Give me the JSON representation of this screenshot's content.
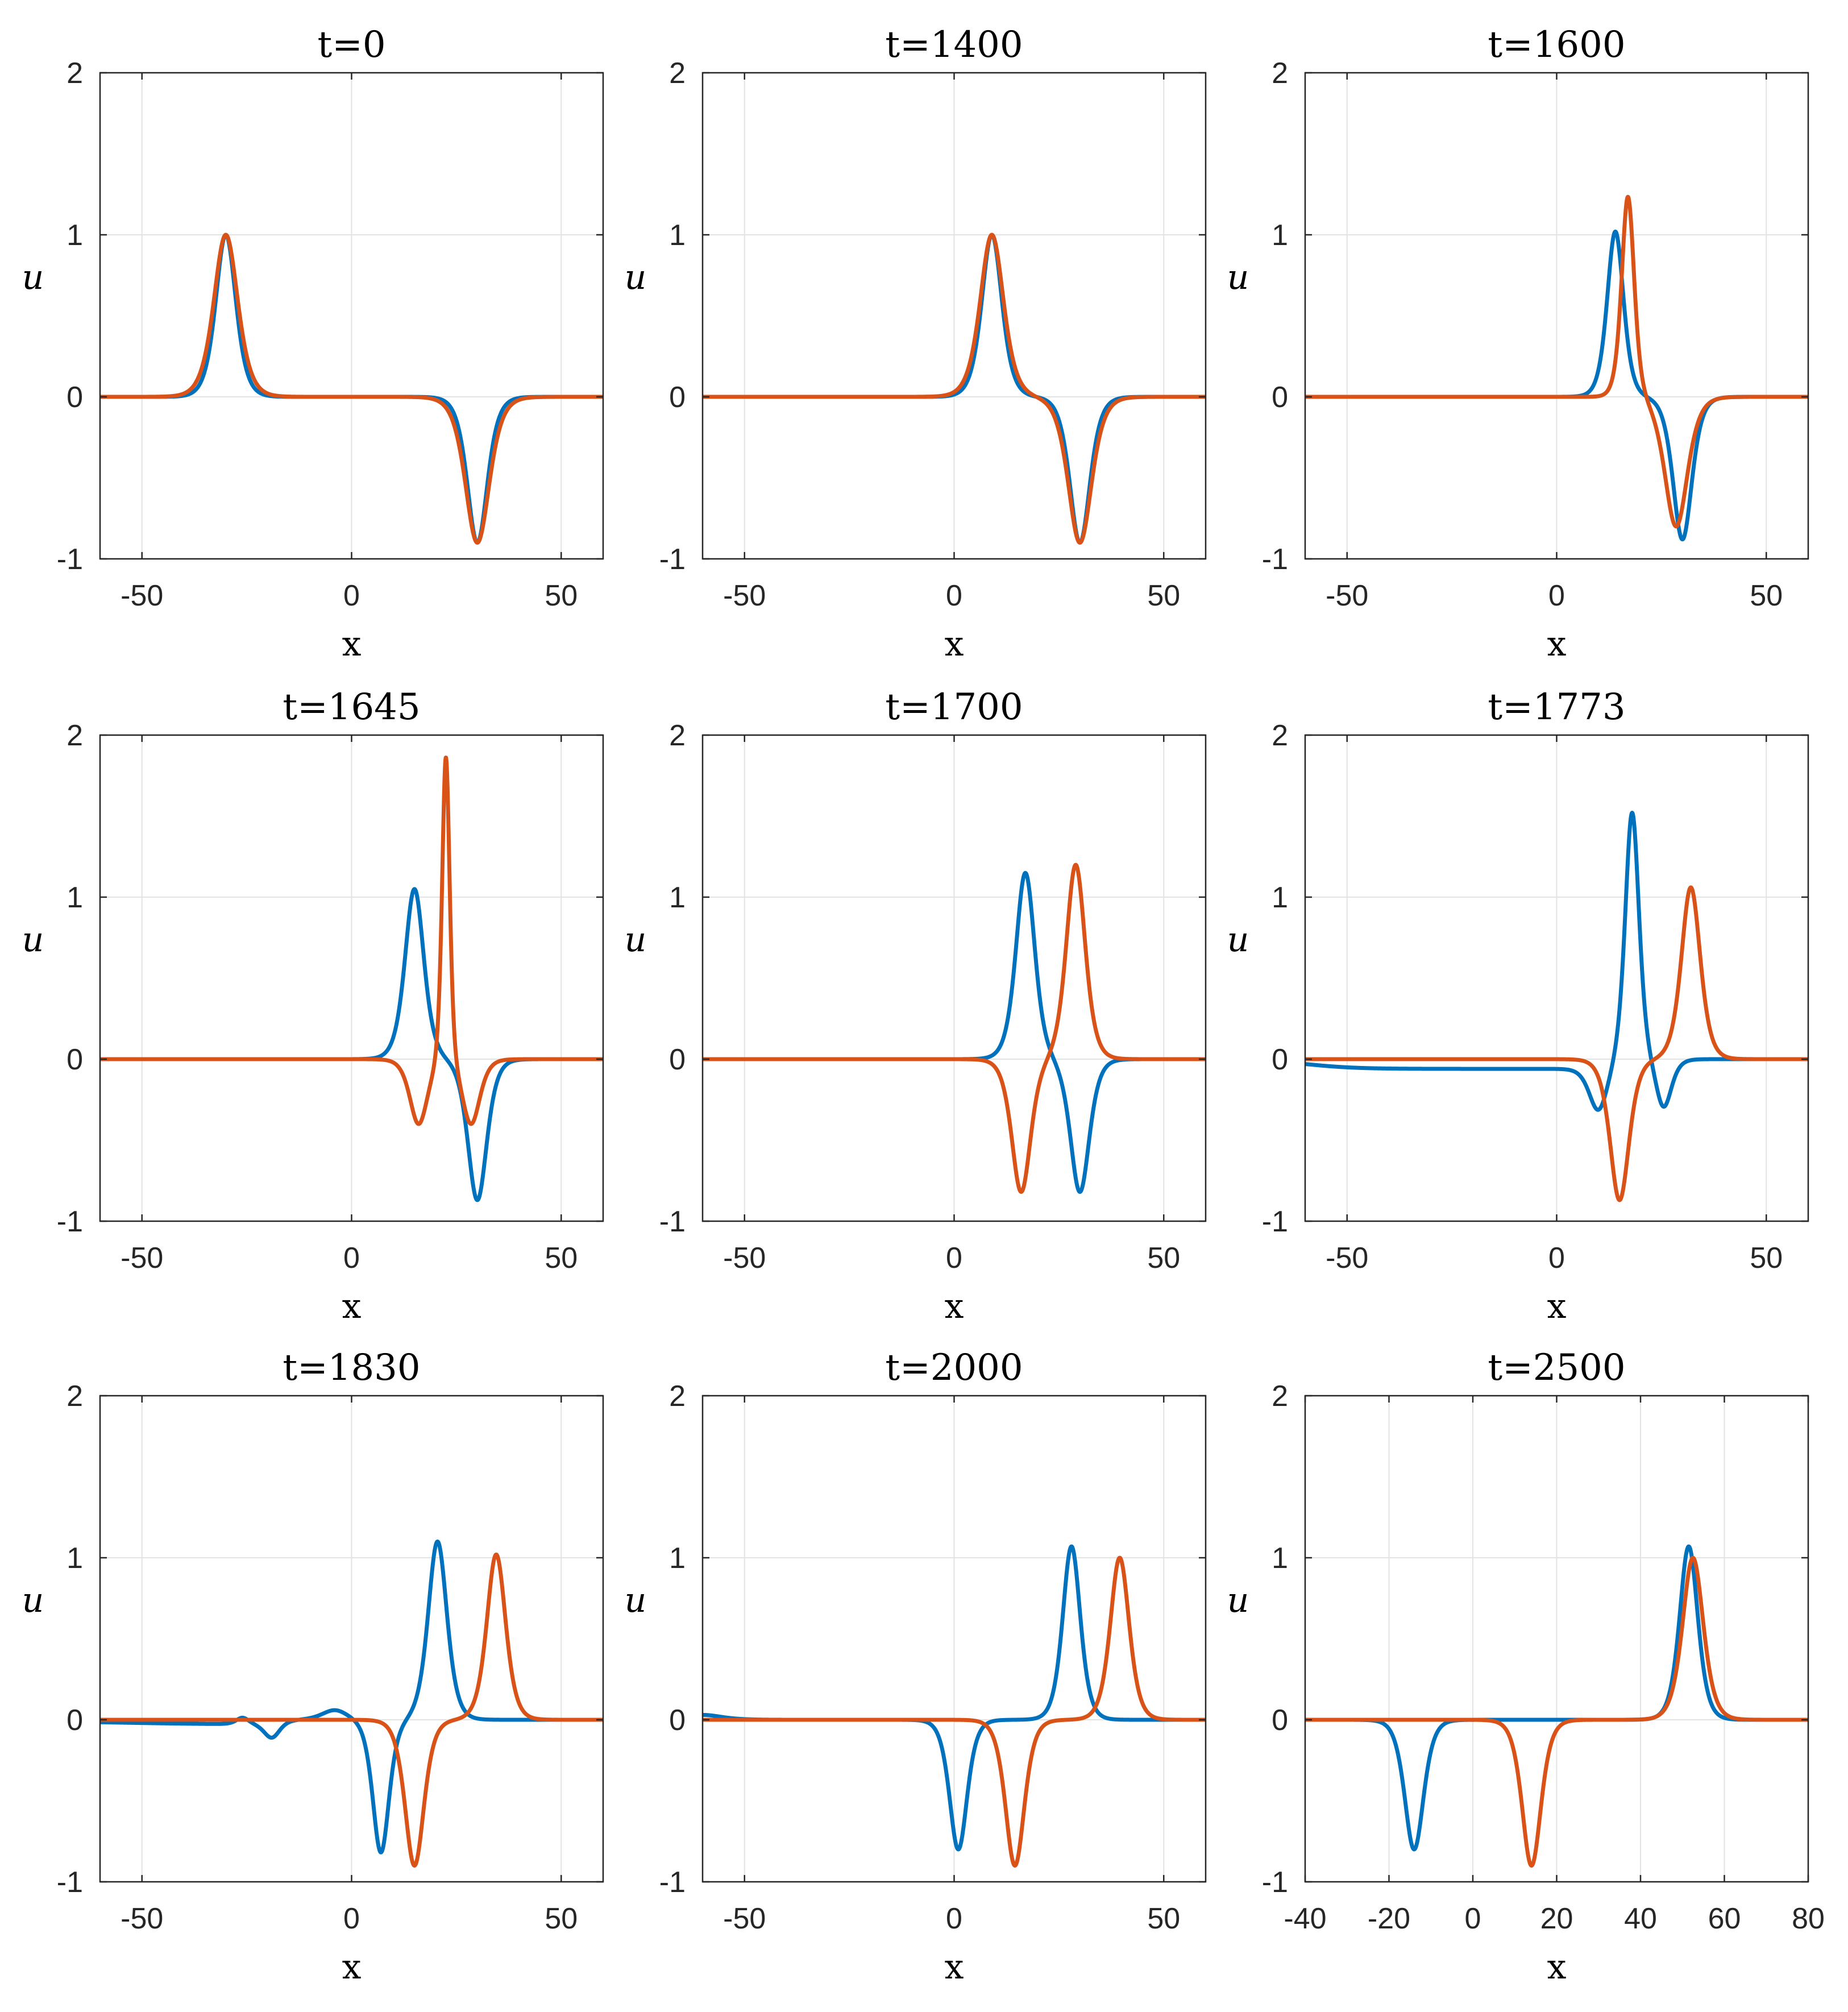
{
  "colors": {
    "series1": "#0072BD",
    "series2": "#D95319",
    "grid": "#e3e3e3",
    "axis": "#262626"
  },
  "chart_data": [
    {
      "type": "line",
      "title": "t=0",
      "xlabel": "x",
      "ylabel": "u",
      "xlim": [
        -60,
        60
      ],
      "ylim": [
        -1,
        2
      ],
      "xticks": [
        -50,
        0,
        50
      ],
      "xtick_labels": [
        "-50",
        "0",
        "50"
      ],
      "yticks": [
        -1,
        0,
        1,
        2
      ],
      "ytick_labels": [
        "-1",
        "0",
        "1",
        "2"
      ],
      "grid": true,
      "series": [
        {
          "name": "blue",
          "color": "#0072BD",
          "components": [
            {
              "type": "sech2",
              "center": -30,
              "amp": 1.0,
              "width": 3.2
            },
            {
              "type": "sech2",
              "center": 30,
              "amp": -0.9,
              "width": 3.2
            }
          ]
        },
        {
          "name": "orange",
          "color": "#D95319",
          "components": [
            {
              "type": "sech2",
              "center": -30,
              "amp": 1.0,
              "width": 3.8
            },
            {
              "type": "sech2",
              "center": 30,
              "amp": -0.9,
              "width": 3.8
            }
          ]
        }
      ]
    },
    {
      "type": "line",
      "title": "t=1400",
      "xlabel": "x",
      "ylabel": "u",
      "xlim": [
        -60,
        60
      ],
      "ylim": [
        -1,
        2
      ],
      "xticks": [
        -50,
        0,
        50
      ],
      "xtick_labels": [
        "-50",
        "0",
        "50"
      ],
      "yticks": [
        -1,
        0,
        1,
        2
      ],
      "ytick_labels": [
        "-1",
        "0",
        "1",
        "2"
      ],
      "grid": true,
      "series": [
        {
          "name": "blue",
          "color": "#0072BD",
          "components": [
            {
              "type": "sech2",
              "center": 9,
              "amp": 1.0,
              "width": 3.2
            },
            {
              "type": "sech2",
              "center": 30,
              "amp": -0.9,
              "width": 3.2
            }
          ]
        },
        {
          "name": "orange",
          "color": "#D95319",
          "components": [
            {
              "type": "sech2",
              "center": 9,
              "amp": 1.0,
              "width": 3.7
            },
            {
              "type": "sech2",
              "center": 30,
              "amp": -0.9,
              "width": 3.7
            }
          ]
        }
      ]
    },
    {
      "type": "line",
      "title": "t=1600",
      "xlabel": "x",
      "ylabel": "u",
      "xlim": [
        -60,
        60
      ],
      "ylim": [
        -1,
        2
      ],
      "xticks": [
        -50,
        0,
        50
      ],
      "xtick_labels": [
        "-50",
        "0",
        "50"
      ],
      "yticks": [
        -1,
        0,
        1,
        2
      ],
      "ytick_labels": [
        "-1",
        "0",
        "1",
        "2"
      ],
      "grid": true,
      "series": [
        {
          "name": "blue",
          "color": "#0072BD",
          "components": [
            {
              "type": "sech2",
              "center": 14,
              "amp": 1.02,
              "width": 2.6
            },
            {
              "type": "sech2",
              "center": 30,
              "amp": -0.88,
              "width": 3.0
            }
          ]
        },
        {
          "name": "orange",
          "color": "#D95319",
          "components": [
            {
              "type": "sech2",
              "center": 17,
              "amp": 1.24,
              "width": 2.0
            },
            {
              "type": "sech2",
              "center": 28.5,
              "amp": -0.8,
              "width": 3.6
            }
          ]
        }
      ]
    },
    {
      "type": "line",
      "title": "t=1645",
      "xlabel": "x",
      "ylabel": "u",
      "xlim": [
        -60,
        60
      ],
      "ylim": [
        -1,
        2
      ],
      "xticks": [
        -50,
        0,
        50
      ],
      "xtick_labels": [
        "-50",
        "0",
        "50"
      ],
      "yticks": [
        -1,
        0,
        1,
        2
      ],
      "ytick_labels": [
        "-1",
        "0",
        "1",
        "2"
      ],
      "grid": true,
      "series": [
        {
          "name": "blue",
          "color": "#0072BD",
          "components": [
            {
              "type": "sech2",
              "center": 15,
              "amp": 1.05,
              "width": 3.0
            },
            {
              "type": "sech2",
              "center": 30,
              "amp": -0.87,
              "width": 3.0
            }
          ]
        },
        {
          "name": "orange",
          "color": "#D95319",
          "components": [
            {
              "type": "sech2",
              "center": 22.5,
              "amp": 1.9,
              "width": 1.2
            },
            {
              "type": "sech2",
              "center": 16,
              "amp": -0.4,
              "width": 2.8
            },
            {
              "type": "sech2",
              "center": 28.5,
              "amp": -0.4,
              "width": 2.8
            }
          ]
        }
      ]
    },
    {
      "type": "line",
      "title": "t=1700",
      "xlabel": "x",
      "ylabel": "u",
      "xlim": [
        -60,
        60
      ],
      "ylim": [
        -1,
        2
      ],
      "xticks": [
        -50,
        0,
        50
      ],
      "xtick_labels": [
        "-50",
        "0",
        "50"
      ],
      "yticks": [
        -1,
        0,
        1,
        2
      ],
      "ytick_labels": [
        "-1",
        "0",
        "1",
        "2"
      ],
      "grid": true,
      "series": [
        {
          "name": "blue",
          "color": "#0072BD",
          "components": [
            {
              "type": "sech2",
              "center": 17,
              "amp": 1.15,
              "width": 3.0
            },
            {
              "type": "sech2",
              "center": 30,
              "amp": -0.82,
              "width": 3.0
            }
          ]
        },
        {
          "name": "orange",
          "color": "#D95319",
          "components": [
            {
              "type": "sech2",
              "center": 29,
              "amp": 1.2,
              "width": 3.0
            },
            {
              "type": "sech2",
              "center": 16,
              "amp": -0.82,
              "width": 3.0
            }
          ]
        }
      ]
    },
    {
      "type": "line",
      "title": "t=1773",
      "xlabel": "x",
      "ylabel": "u",
      "xlim": [
        -60,
        60
      ],
      "ylim": [
        -1,
        2
      ],
      "xticks": [
        -50,
        0,
        50
      ],
      "xtick_labels": [
        "-50",
        "0",
        "50"
      ],
      "yticks": [
        -1,
        0,
        1,
        2
      ],
      "ytick_labels": [
        "-1",
        "0",
        "1",
        "2"
      ],
      "grid": true,
      "series": [
        {
          "name": "blue",
          "color": "#0072BD",
          "components": [
            {
              "type": "sech2",
              "center": 18,
              "amp": 1.53,
              "width": 2.2
            },
            {
              "type": "sech2",
              "center": 10,
              "amp": -0.3,
              "width": 3.0
            },
            {
              "type": "sech2",
              "center": 25.5,
              "amp": -0.3,
              "width": 2.5
            },
            {
              "type": "tail",
              "left": -60,
              "right": 8,
              "amp": -0.06,
              "scale": 6
            }
          ]
        },
        {
          "name": "orange",
          "color": "#D95319",
          "components": [
            {
              "type": "sech2",
              "center": 32,
              "amp": 1.06,
              "width": 3.0
            },
            {
              "type": "sech2",
              "center": 15,
              "amp": -0.87,
              "width": 3.0
            }
          ]
        }
      ]
    },
    {
      "type": "line",
      "title": "t=1830",
      "xlabel": "x",
      "ylabel": "u",
      "xlim": [
        -60,
        60
      ],
      "ylim": [
        -1,
        2
      ],
      "xticks": [
        -50,
        0,
        50
      ],
      "xtick_labels": [
        "-50",
        "0",
        "50"
      ],
      "yticks": [
        -1,
        0,
        1,
        2
      ],
      "ytick_labels": [
        "-1",
        "0",
        "1",
        "2"
      ],
      "grid": true,
      "series": [
        {
          "name": "blue",
          "color": "#0072BD",
          "components": [
            {
              "type": "sech2",
              "center": 20.5,
              "amp": 1.1,
              "width": 3.0
            },
            {
              "type": "sech2",
              "center": 7,
              "amp": -0.82,
              "width": 2.6
            },
            {
              "type": "sech2",
              "center": -4,
              "amp": 0.06,
              "width": 4.0
            },
            {
              "type": "sech2",
              "center": -19,
              "amp": -0.1,
              "width": 2.5
            },
            {
              "type": "sech2",
              "center": -26,
              "amp": 0.04,
              "width": 2.0
            },
            {
              "type": "tail",
              "left": -60,
              "right": -20,
              "amp": -0.03,
              "scale": 15
            }
          ]
        },
        {
          "name": "orange",
          "color": "#D95319",
          "components": [
            {
              "type": "sech2",
              "center": 34.5,
              "amp": 1.02,
              "width": 3.0
            },
            {
              "type": "sech2",
              "center": 15,
              "amp": -0.9,
              "width": 3.0
            }
          ]
        }
      ]
    },
    {
      "type": "line",
      "title": "t=2000",
      "xlabel": "x",
      "ylabel": "u",
      "xlim": [
        -60,
        60
      ],
      "ylim": [
        -1,
        2
      ],
      "xticks": [
        -50,
        0,
        50
      ],
      "xtick_labels": [
        "-50",
        "0",
        "50"
      ],
      "yticks": [
        -1,
        0,
        1,
        2
      ],
      "ytick_labels": [
        "-1",
        "0",
        "1",
        "2"
      ],
      "grid": true,
      "series": [
        {
          "name": "blue",
          "color": "#0072BD",
          "components": [
            {
              "type": "sech2",
              "center": 28,
              "amp": 1.07,
              "width": 2.8
            },
            {
              "type": "sech2",
              "center": 1,
              "amp": -0.8,
              "width": 2.8
            },
            {
              "type": "sech2",
              "center": -60,
              "amp": 0.03,
              "width": 6.0
            }
          ]
        },
        {
          "name": "orange",
          "color": "#D95319",
          "components": [
            {
              "type": "sech2",
              "center": 39.5,
              "amp": 1.0,
              "width": 3.0
            },
            {
              "type": "sech2",
              "center": 14.5,
              "amp": -0.9,
              "width": 3.0
            }
          ]
        }
      ]
    },
    {
      "type": "line",
      "title": "t=2500",
      "xlabel": "x",
      "ylabel": "u",
      "xlim": [
        -40,
        80
      ],
      "ylim": [
        -1,
        2
      ],
      "xticks": [
        -40,
        -20,
        0,
        20,
        40,
        60,
        80
      ],
      "xtick_labels": [
        "-40",
        "-20",
        "0",
        "20",
        "40",
        "60",
        "80"
      ],
      "yticks": [
        -1,
        0,
        1,
        2
      ],
      "ytick_labels": [
        "-1",
        "0",
        "1",
        "2"
      ],
      "grid": true,
      "series": [
        {
          "name": "blue",
          "color": "#0072BD",
          "components": [
            {
              "type": "sech2",
              "center": 51.5,
              "amp": 1.07,
              "width": 2.9
            },
            {
              "type": "sech2",
              "center": -14,
              "amp": -0.8,
              "width": 3.0
            }
          ]
        },
        {
          "name": "orange",
          "color": "#D95319",
          "components": [
            {
              "type": "sech2",
              "center": 52.5,
              "amp": 1.0,
              "width": 3.3
            },
            {
              "type": "sech2",
              "center": 14,
              "amp": -0.9,
              "width": 3.0
            }
          ]
        }
      ]
    }
  ]
}
